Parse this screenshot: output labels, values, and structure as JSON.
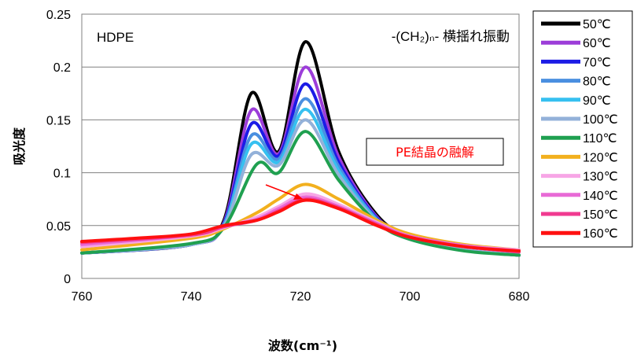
{
  "chart_data": {
    "type": "line",
    "xlabel": "波数(cm⁻¹)",
    "ylabel": "吸光度",
    "xlim": [
      760,
      680
    ],
    "ylim": [
      0,
      0.25
    ],
    "x_ticks": [
      "760",
      "740",
      "720",
      "700",
      "680"
    ],
    "y_ticks": [
      "0",
      "0.05",
      "0.1",
      "0.15",
      "0.2",
      "0.25"
    ],
    "grid": "horizontal",
    "legend_position": "right",
    "annotations": {
      "sample": "HDPE",
      "mode": "-(CH₂)ₙ- 横揺れ振動",
      "melting": "PE結晶の融解"
    },
    "series": [
      {
        "name": "50℃",
        "color": "#000000",
        "points": [
          [
            760,
            0.024
          ],
          [
            740,
            0.032
          ],
          [
            734,
            0.055
          ],
          [
            729,
            0.175
          ],
          [
            724,
            0.12
          ],
          [
            719,
            0.224
          ],
          [
            713,
            0.12
          ],
          [
            706,
            0.06
          ],
          [
            700,
            0.04
          ],
          [
            690,
            0.027
          ],
          [
            680,
            0.022
          ]
        ]
      },
      {
        "name": "60℃",
        "color": "#9c3dd9",
        "points": [
          [
            760,
            0.024
          ],
          [
            740,
            0.032
          ],
          [
            734,
            0.053
          ],
          [
            729,
            0.159
          ],
          [
            724,
            0.118
          ],
          [
            719,
            0.2
          ],
          [
            713,
            0.115
          ],
          [
            706,
            0.058
          ],
          [
            700,
            0.039
          ],
          [
            690,
            0.027
          ],
          [
            680,
            0.022
          ]
        ]
      },
      {
        "name": "70℃",
        "color": "#1c1ce6",
        "points": [
          [
            760,
            0.024
          ],
          [
            740,
            0.032
          ],
          [
            734,
            0.052
          ],
          [
            729,
            0.146
          ],
          [
            724,
            0.116
          ],
          [
            719,
            0.184
          ],
          [
            713,
            0.11
          ],
          [
            706,
            0.057
          ],
          [
            700,
            0.039
          ],
          [
            690,
            0.027
          ],
          [
            680,
            0.022
          ]
        ]
      },
      {
        "name": "80℃",
        "color": "#4a8fe0",
        "points": [
          [
            760,
            0.024
          ],
          [
            740,
            0.032
          ],
          [
            734,
            0.051
          ],
          [
            729,
            0.135
          ],
          [
            724,
            0.113
          ],
          [
            719,
            0.17
          ],
          [
            713,
            0.106
          ],
          [
            706,
            0.056
          ],
          [
            700,
            0.038
          ],
          [
            690,
            0.027
          ],
          [
            680,
            0.022
          ]
        ]
      },
      {
        "name": "90℃",
        "color": "#36c0f0",
        "points": [
          [
            760,
            0.024
          ],
          [
            740,
            0.032
          ],
          [
            734,
            0.05
          ],
          [
            729,
            0.127
          ],
          [
            724,
            0.11
          ],
          [
            719,
            0.16
          ],
          [
            713,
            0.102
          ],
          [
            706,
            0.055
          ],
          [
            700,
            0.038
          ],
          [
            690,
            0.027
          ],
          [
            680,
            0.022
          ]
        ]
      },
      {
        "name": "100℃",
        "color": "#93b1d9",
        "points": [
          [
            760,
            0.024
          ],
          [
            740,
            0.032
          ],
          [
            734,
            0.049
          ],
          [
            729,
            0.117
          ],
          [
            724,
            0.107
          ],
          [
            719,
            0.15
          ],
          [
            713,
            0.098
          ],
          [
            706,
            0.054
          ],
          [
            700,
            0.037
          ],
          [
            690,
            0.027
          ],
          [
            680,
            0.022
          ]
        ]
      },
      {
        "name": "110℃",
        "color": "#1fa050",
        "points": [
          [
            760,
            0.024
          ],
          [
            740,
            0.033
          ],
          [
            734,
            0.048
          ],
          [
            728,
            0.108
          ],
          [
            724,
            0.1
          ],
          [
            719,
            0.139
          ],
          [
            713,
            0.093
          ],
          [
            706,
            0.053
          ],
          [
            700,
            0.037
          ],
          [
            690,
            0.026
          ],
          [
            680,
            0.022
          ]
        ]
      },
      {
        "name": "120℃",
        "color": "#f2b01e",
        "points": [
          [
            760,
            0.027
          ],
          [
            740,
            0.038
          ],
          [
            734,
            0.047
          ],
          [
            728,
            0.062
          ],
          [
            724,
            0.075
          ],
          [
            719,
            0.089
          ],
          [
            713,
            0.075
          ],
          [
            706,
            0.055
          ],
          [
            700,
            0.042
          ],
          [
            690,
            0.032
          ],
          [
            680,
            0.027
          ]
        ]
      },
      {
        "name": "130℃",
        "color": "#f7a6e6",
        "points": [
          [
            760,
            0.03
          ],
          [
            740,
            0.04
          ],
          [
            734,
            0.048
          ],
          [
            728,
            0.058
          ],
          [
            724,
            0.068
          ],
          [
            719,
            0.08
          ],
          [
            713,
            0.07
          ],
          [
            706,
            0.053
          ],
          [
            700,
            0.04
          ],
          [
            690,
            0.031
          ],
          [
            680,
            0.027
          ]
        ]
      },
      {
        "name": "140℃",
        "color": "#e86ad6",
        "points": [
          [
            760,
            0.032
          ],
          [
            740,
            0.041
          ],
          [
            734,
            0.049
          ],
          [
            728,
            0.056
          ],
          [
            724,
            0.066
          ],
          [
            719,
            0.077
          ],
          [
            713,
            0.068
          ],
          [
            706,
            0.052
          ],
          [
            700,
            0.04
          ],
          [
            690,
            0.031
          ],
          [
            680,
            0.026
          ]
        ]
      },
      {
        "name": "150℃",
        "color": "#f03a90",
        "points": [
          [
            760,
            0.034
          ],
          [
            740,
            0.041
          ],
          [
            734,
            0.049
          ],
          [
            728,
            0.055
          ],
          [
            724,
            0.064
          ],
          [
            719,
            0.075
          ],
          [
            713,
            0.067
          ],
          [
            706,
            0.051
          ],
          [
            700,
            0.039
          ],
          [
            690,
            0.03
          ],
          [
            680,
            0.025
          ]
        ]
      },
      {
        "name": "160℃",
        "color": "#ff1010",
        "points": [
          [
            760,
            0.035
          ],
          [
            750,
            0.038
          ],
          [
            740,
            0.042
          ],
          [
            734,
            0.05
          ],
          [
            728,
            0.055
          ],
          [
            724,
            0.063
          ],
          [
            719,
            0.074
          ],
          [
            713,
            0.066
          ],
          [
            706,
            0.05
          ],
          [
            700,
            0.039
          ],
          [
            690,
            0.03
          ],
          [
            680,
            0.026
          ]
        ]
      }
    ]
  }
}
